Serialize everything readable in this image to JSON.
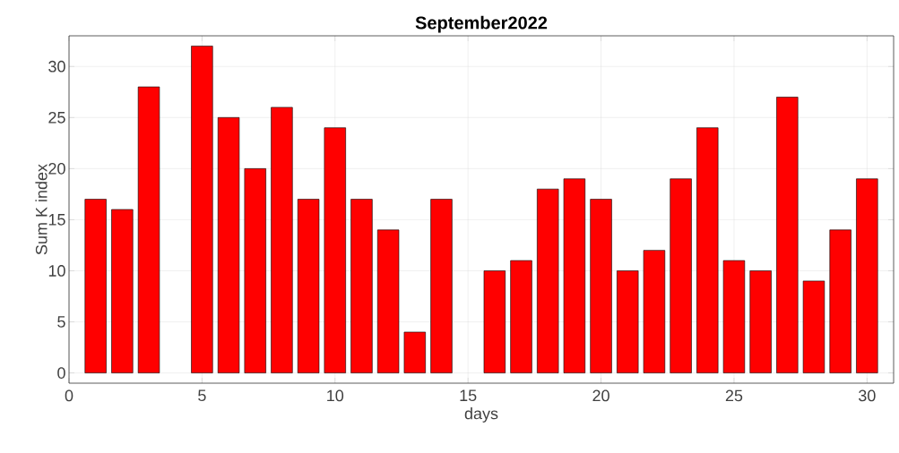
{
  "chart_data": {
    "type": "bar",
    "title": "September2022",
    "xlabel": "days",
    "ylabel": "Sum K index",
    "x": [
      1,
      2,
      3,
      4,
      5,
      6,
      7,
      8,
      9,
      10,
      11,
      12,
      13,
      14,
      15,
      16,
      17,
      18,
      19,
      20,
      21,
      22,
      23,
      24,
      25,
      26,
      27,
      28,
      29,
      30
    ],
    "values": [
      17,
      16,
      28,
      null,
      32,
      25,
      20,
      26,
      17,
      24,
      17,
      14,
      4,
      17,
      null,
      10,
      11,
      18,
      19,
      17,
      10,
      12,
      19,
      24,
      11,
      10,
      27,
      9,
      14,
      19
    ],
    "color": "#ff0000",
    "xlim": [
      0,
      31
    ],
    "ylim": [
      -1,
      33
    ],
    "xticks": [
      0,
      5,
      10,
      15,
      20,
      25,
      30
    ],
    "yticks": [
      0,
      5,
      10,
      15,
      20,
      25,
      30
    ],
    "grid": true
  }
}
